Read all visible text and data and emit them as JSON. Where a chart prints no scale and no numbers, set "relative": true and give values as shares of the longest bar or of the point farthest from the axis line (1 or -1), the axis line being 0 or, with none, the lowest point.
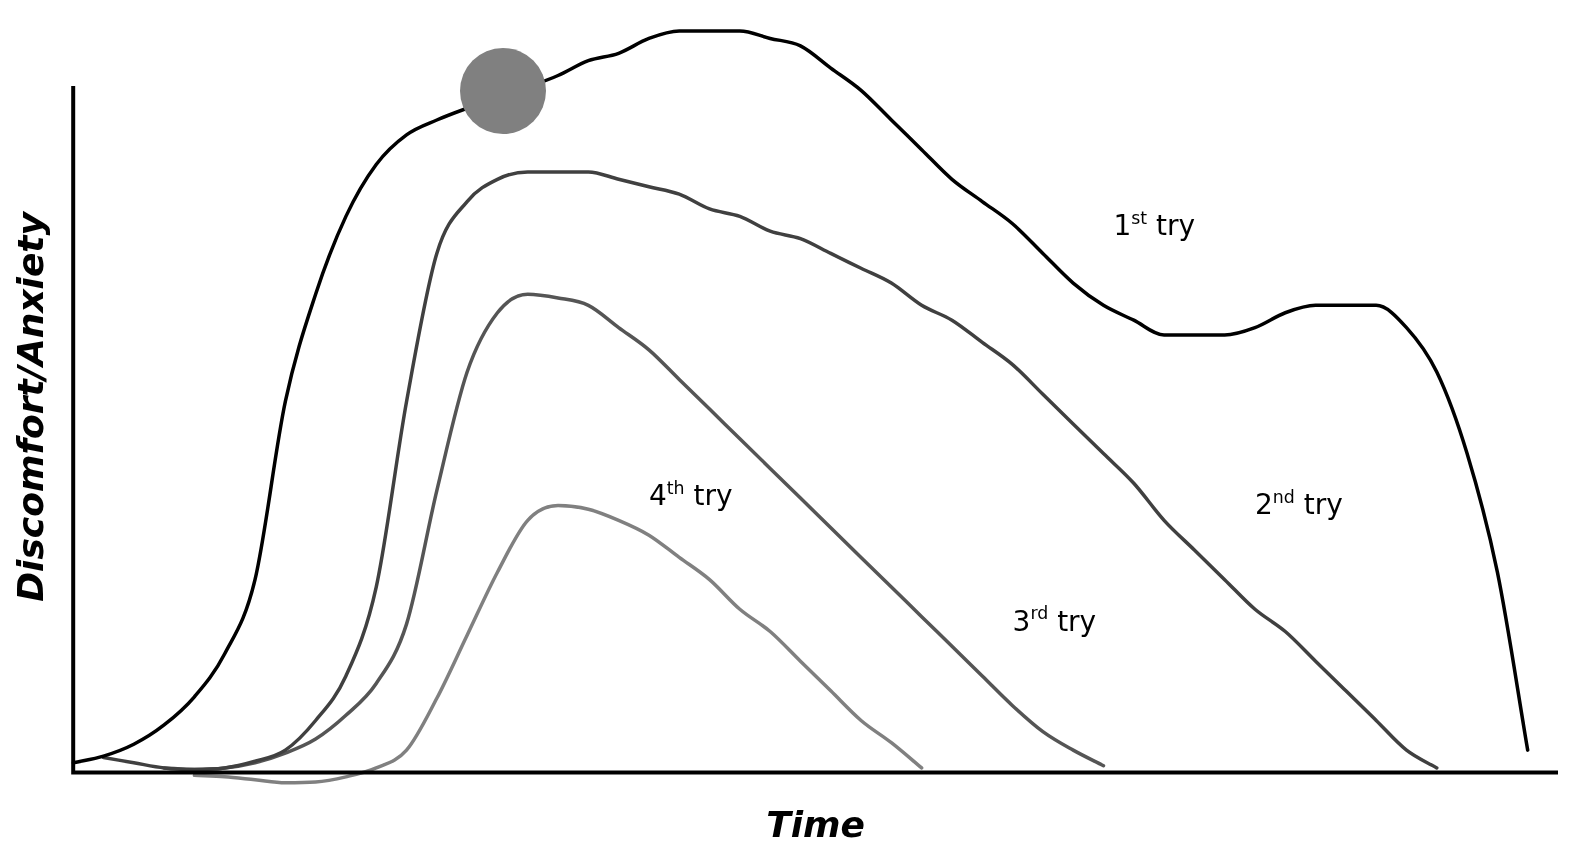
{
  "chart_data": {
    "type": "line",
    "relative": true,
    "xlabel": "Time",
    "ylabel": "Discomfort/Anxiety",
    "marker": "none",
    "grid": false,
    "legend": false,
    "categories": [
      null,
      null,
      null,
      null,
      null,
      null,
      null,
      null,
      null,
      null,
      null,
      null,
      null,
      null,
      null,
      null,
      null,
      null,
      null,
      null,
      null,
      null,
      null,
      null,
      null,
      null,
      null,
      null,
      null,
      null,
      null,
      null,
      null,
      null,
      null,
      null,
      null,
      null,
      null,
      null,
      null,
      null,
      null,
      null,
      null,
      null,
      null,
      null,
      null,
      null
    ],
    "series": [
      {
        "name": "1$^{st}$ try",
        "color": "#000000",
        "values": [
          0.013,
          0.022,
          0.038,
          0.064,
          0.102,
          0.16,
          0.26,
          0.5,
          0.645,
          0.75,
          0.82,
          0.86,
          0.88,
          null,
          null,
          null,
          0.94,
          0.96,
          0.97,
          0.99,
          1.0,
          1.0,
          1.0,
          0.99,
          0.98,
          0.95,
          0.92,
          0.88,
          0.84,
          0.8,
          0.77,
          0.74,
          0.7,
          0.66,
          0.63,
          0.61,
          0.59,
          0.59,
          0.59,
          0.6,
          0.62,
          0.63,
          0.63,
          0.63,
          0.6,
          0.54,
          0.43,
          0.27,
          0.03,
          null
        ]
      },
      {
        "name": "2$^{nd}$ try",
        "color": "#404040",
        "values": [
          null,
          0.02,
          0.013,
          0.006,
          0.004,
          0.006,
          0.015,
          0.03,
          0.07,
          0.13,
          0.25,
          0.5,
          0.7,
          0.77,
          0.8,
          0.81,
          0.81,
          0.81,
          0.8,
          0.79,
          0.78,
          0.76,
          0.75,
          0.73,
          0.72,
          0.7,
          0.68,
          0.66,
          0.63,
          0.61,
          0.58,
          0.55,
          0.51,
          0.47,
          0.43,
          0.39,
          0.34,
          0.3,
          0.26,
          0.22,
          0.19,
          0.15,
          0.11,
          0.07,
          0.03,
          0.006,
          null,
          null,
          null,
          null
        ]
      },
      {
        "name": "3$^{rd}$ try",
        "color": "#555555",
        "values": [
          null,
          null,
          null,
          0.006,
          0.004,
          0.006,
          0.013,
          0.026,
          0.045,
          0.077,
          0.12,
          0.2,
          0.38,
          0.54,
          0.62,
          0.645,
          0.64,
          0.63,
          0.6,
          0.57,
          0.53,
          0.49,
          0.45,
          0.41,
          0.37,
          0.33,
          0.29,
          0.25,
          0.21,
          0.17,
          0.13,
          0.09,
          0.055,
          0.03,
          0.009,
          null,
          null,
          null,
          null,
          null,
          null,
          null,
          null,
          null,
          null,
          null,
          null,
          null,
          null,
          null
        ]
      },
      {
        "name": "4$^{th}$ try",
        "color": "#808080",
        "values": [
          null,
          null,
          null,
          null,
          -0.004,
          -0.006,
          -0.01,
          -0.014,
          -0.013,
          -0.006,
          0.006,
          0.03,
          0.1,
          0.185,
          0.27,
          0.34,
          0.36,
          0.355,
          0.34,
          0.32,
          0.29,
          0.26,
          0.22,
          0.19,
          0.15,
          0.11,
          0.07,
          0.04,
          0.006,
          null,
          null,
          null,
          null,
          null,
          null,
          null,
          null,
          null,
          null,
          null,
          null,
          null,
          null,
          null,
          null,
          null,
          null,
          null,
          null,
          null
        ]
      }
    ]
  }
}
